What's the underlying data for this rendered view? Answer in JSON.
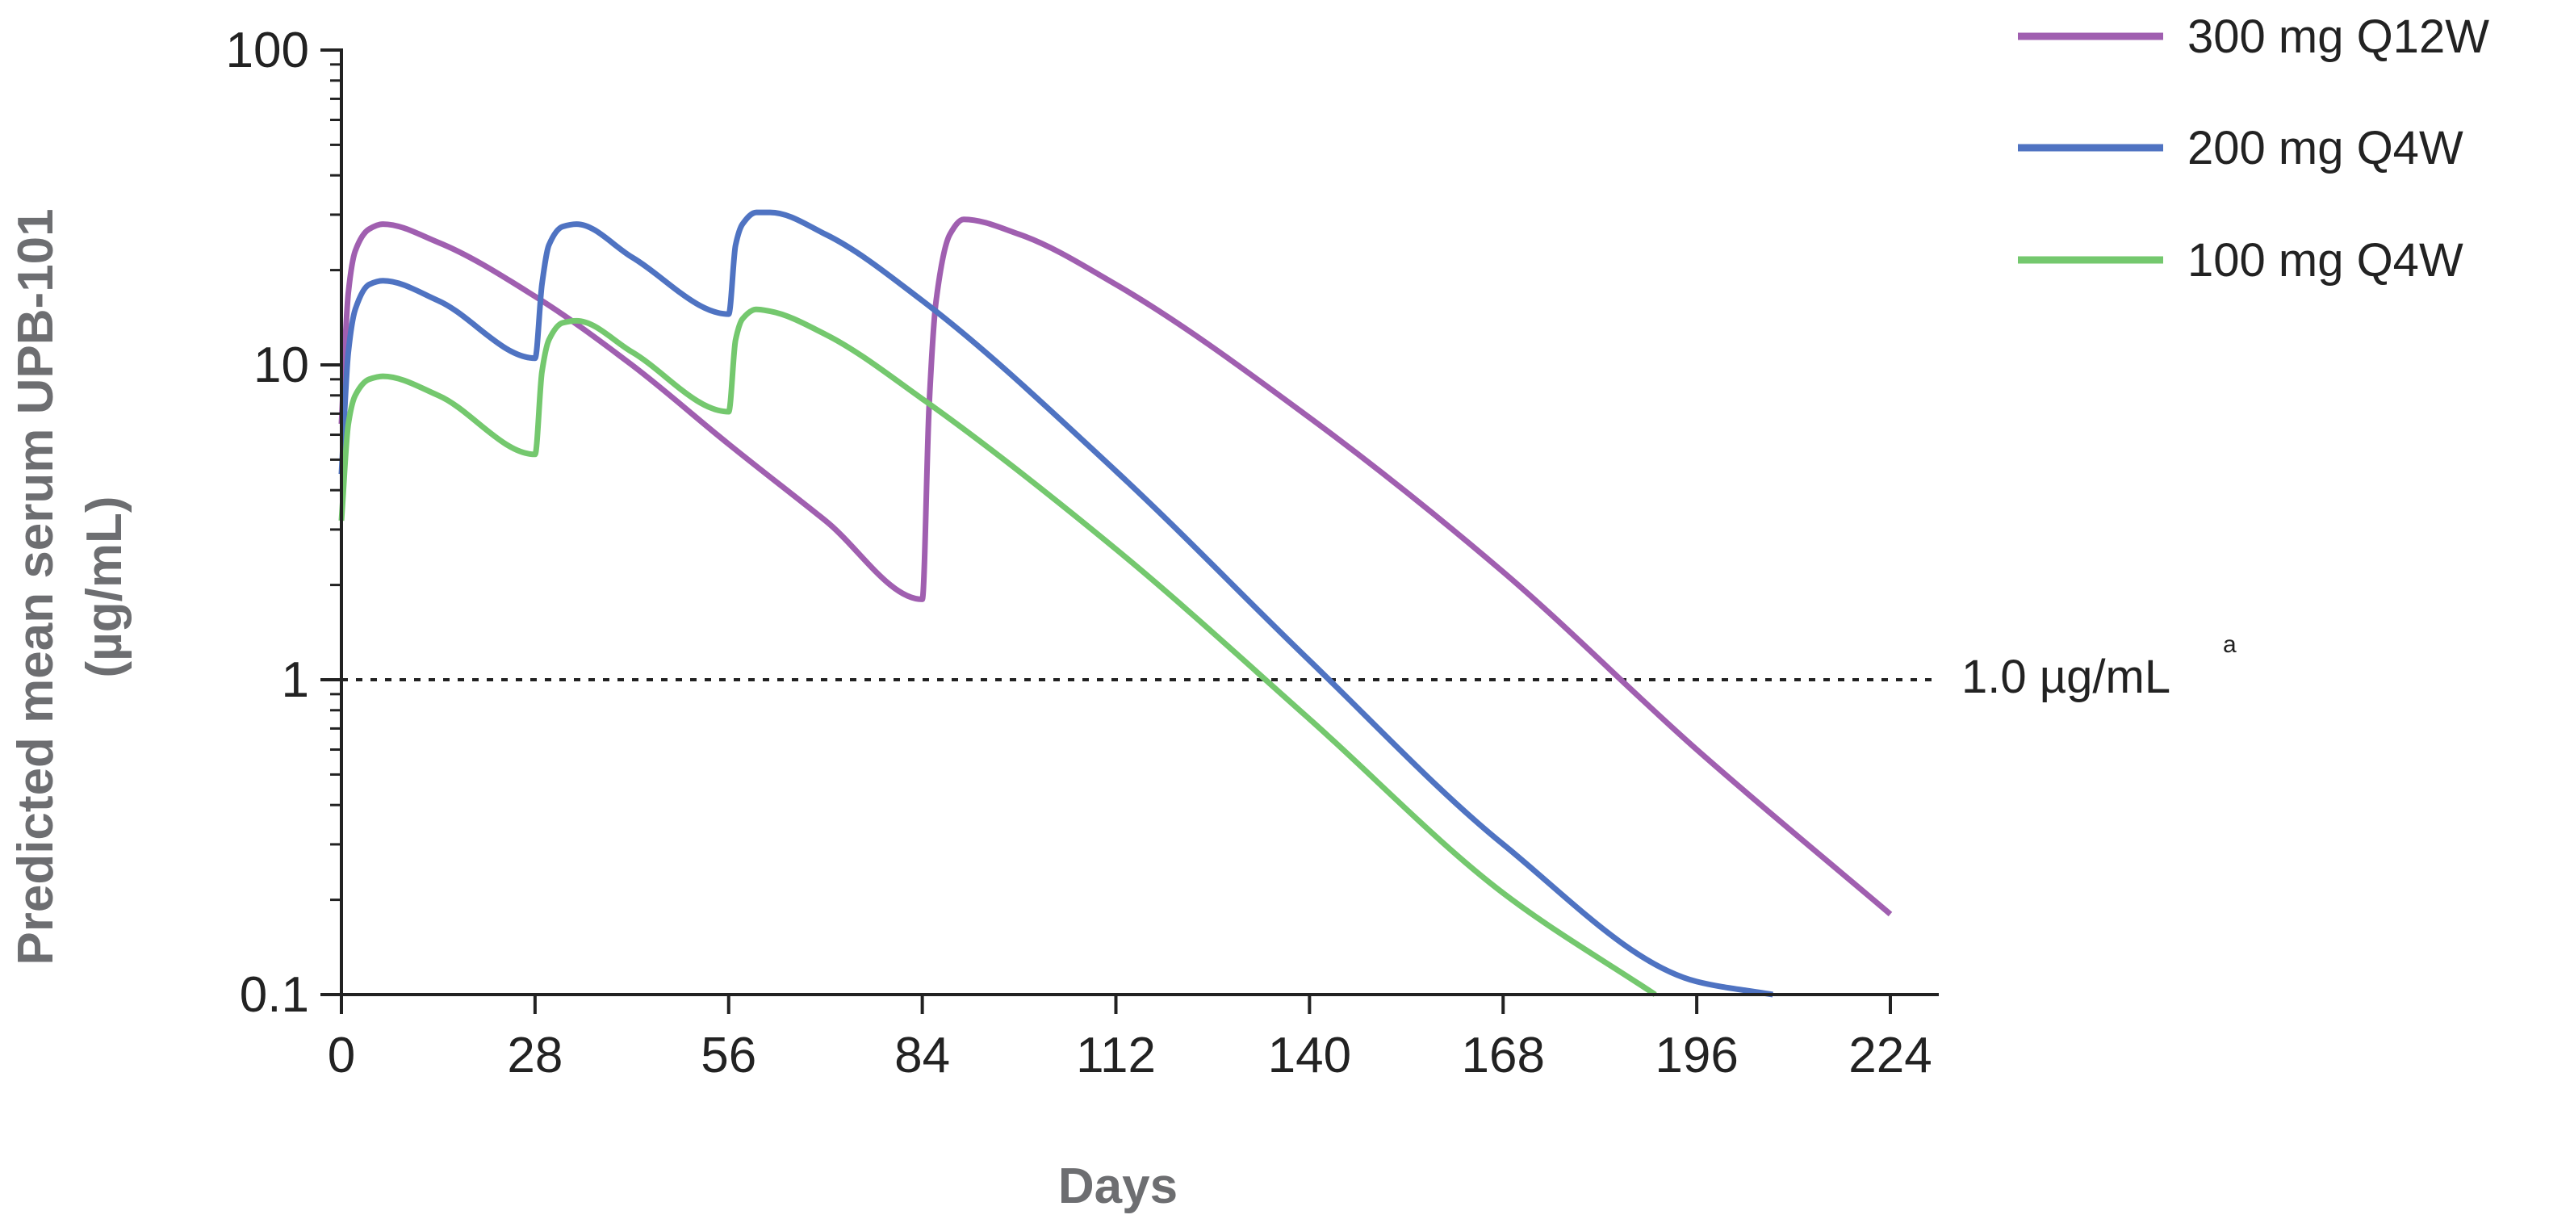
{
  "chart_data": {
    "type": "line",
    "xlabel": "Days",
    "ylabel": [
      "Predicted mean serum UPB-101",
      "(µg/mL)"
    ],
    "y_scale": "log",
    "xlim": [
      0,
      224
    ],
    "ylim": [
      0.1,
      100
    ],
    "x_ticks": [
      0,
      28,
      56,
      84,
      112,
      140,
      168,
      196,
      224
    ],
    "x_tick_labels": [
      "0",
      "28",
      "56",
      "84",
      "112",
      "140",
      "168",
      "196",
      "224"
    ],
    "y_ticks": [
      0.1,
      1,
      10,
      100
    ],
    "y_tick_labels": [
      "0.1",
      "1",
      "10",
      "100"
    ],
    "legend_position": "top-right",
    "reference_line": {
      "y": 1.0,
      "label": "1.0 µg/mL",
      "superscript": "a",
      "style": "dotted"
    },
    "series": [
      {
        "name": "300 mg Q12W",
        "color": "#a05fb0",
        "x": [
          0,
          1,
          2,
          4,
          6,
          14,
          28,
          42,
          56,
          70,
          84,
          85,
          86,
          88,
          90,
          98,
          112,
          140,
          168,
          196,
          224
        ],
        "y": [
          6.5,
          17,
          23,
          27,
          28,
          24.5,
          16.5,
          10,
          5.6,
          3.2,
          1.8,
          7.5,
          16,
          26,
          29,
          26,
          18,
          6.8,
          2.2,
          0.6,
          0.18
        ]
      },
      {
        "name": "200 mg Q4W",
        "color": "#4f73c2",
        "x": [
          0,
          1,
          2,
          4,
          6,
          14,
          28,
          29,
          30,
          32,
          34,
          42,
          56,
          57,
          58,
          60,
          62,
          70,
          84,
          112,
          140,
          168,
          196,
          207
        ],
        "y": [
          4.5,
          11,
          15,
          18,
          18.5,
          16,
          10.5,
          18,
          24,
          27.5,
          28,
          22,
          14.5,
          24,
          28,
          30.5,
          30.5,
          26,
          16,
          4.6,
          1.15,
          0.3,
          0.11,
          0.1
        ]
      },
      {
        "name": "100 mg Q4W",
        "color": "#74c86e",
        "x": [
          0,
          1,
          2,
          4,
          6,
          14,
          28,
          29,
          30,
          32,
          34,
          42,
          56,
          57,
          58,
          60,
          62,
          70,
          84,
          112,
          140,
          168,
          190
        ],
        "y": [
          3.2,
          6.5,
          8,
          9,
          9.2,
          8,
          5.2,
          9.5,
          12,
          13.6,
          13.8,
          11,
          7.1,
          12,
          14,
          15,
          14.8,
          12.5,
          7.8,
          2.6,
          0.75,
          0.21,
          0.1
        ]
      }
    ]
  }
}
